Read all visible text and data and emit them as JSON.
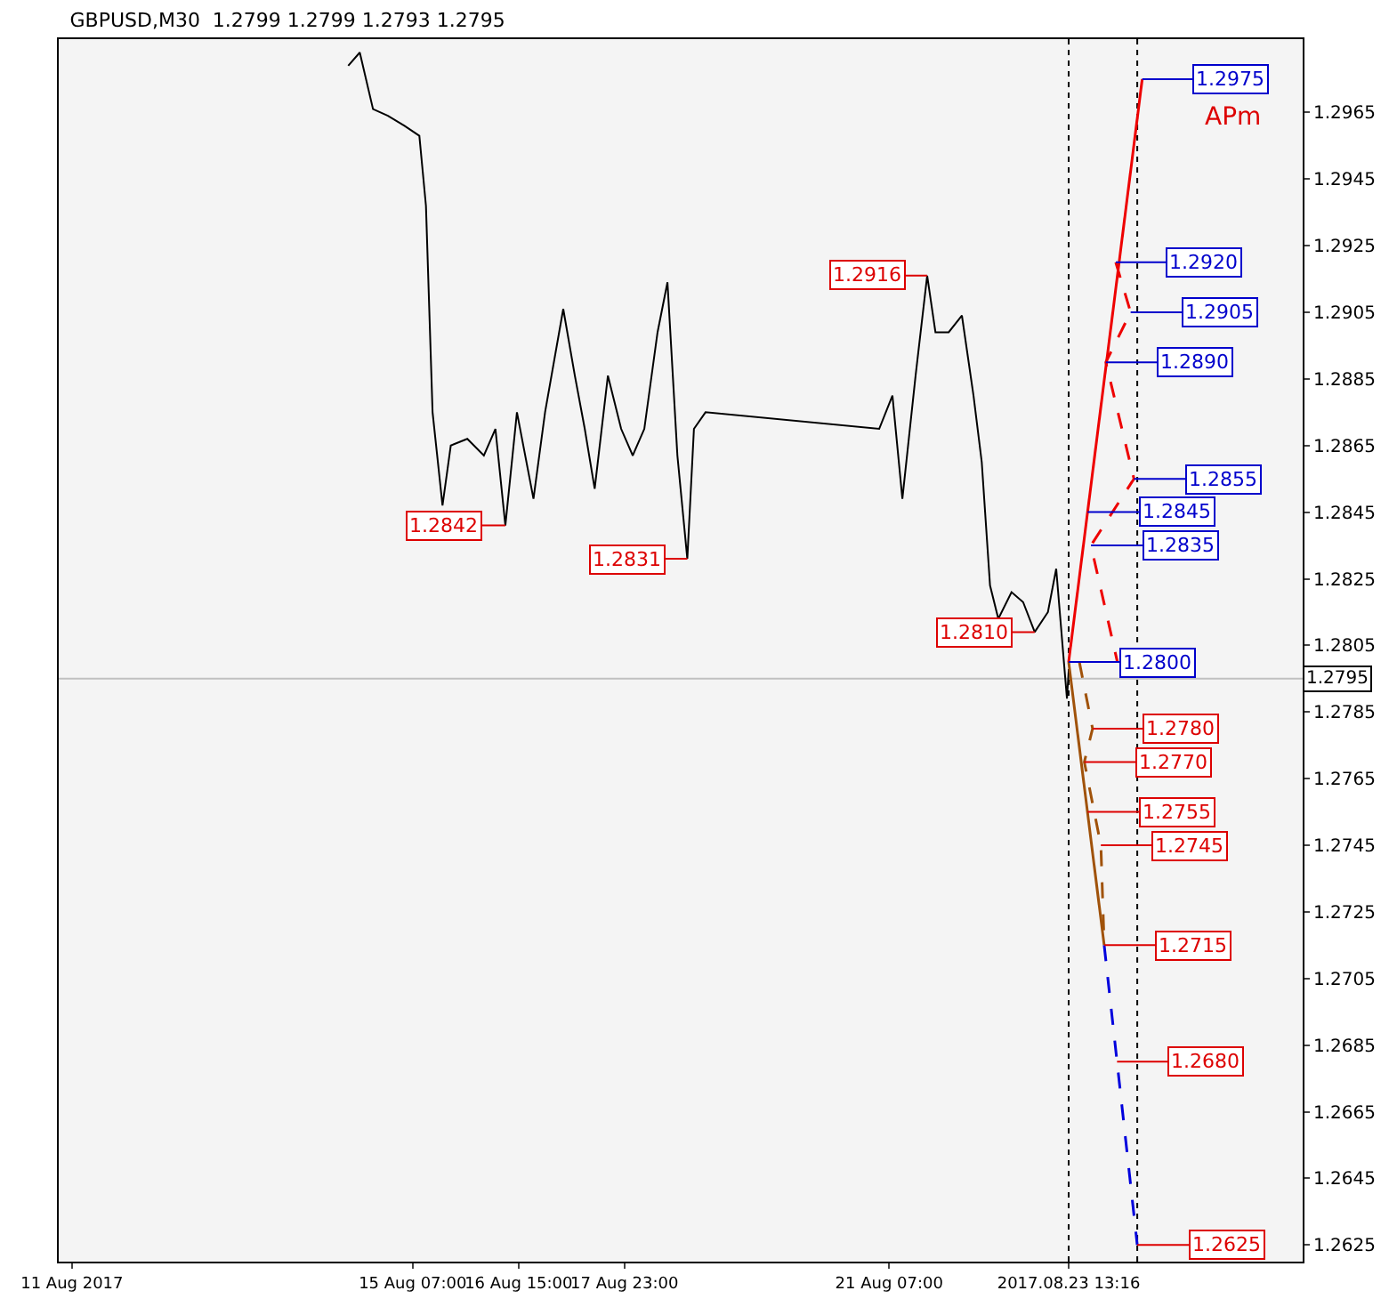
{
  "chart_data": {
    "type": "line",
    "title": "GBPUSD,M30  1.2799 1.2799 1.2793 1.2795",
    "x": [
      "2017-08-14T11:30",
      "2017-08-14T15:00",
      "2017-08-14T19:00",
      "2017-08-14T23:30",
      "2017-08-15T04:30",
      "2017-08-15T09:00",
      "2017-08-15T11:00",
      "2017-08-15T13:00",
      "2017-08-15T16:00",
      "2017-08-15T18:30",
      "2017-08-15T23:30",
      "2017-08-16T04:30",
      "2017-08-16T08:00",
      "2017-08-16T11:00",
      "2017-08-16T14:30",
      "2017-08-16T19:30",
      "2017-08-16T23:00",
      "2017-08-17T04:30",
      "2017-08-17T08:00",
      "2017-08-17T11:00",
      "2017-08-17T14:00",
      "2017-08-17T18:00",
      "2017-08-17T22:00",
      "2017-08-18T01:30",
      "2017-08-18T05:00",
      "2017-08-18T09:00",
      "2017-08-18T12:00",
      "2017-08-18T15:00",
      "2017-08-18T18:00",
      "2017-08-18T20:00",
      "2017-08-18T23:30",
      "2017-08-21T04:00",
      "2017-08-21T08:00",
      "2017-08-21T11:00",
      "2017-08-21T15:00",
      "2017-08-21T18:30",
      "2017-08-21T21:00",
      "2017-08-22T01:00",
      "2017-08-22T05:00",
      "2017-08-22T08:30",
      "2017-08-22T11:00",
      "2017-08-22T13:30",
      "2017-08-22T16:00",
      "2017-08-22T20:00",
      "2017-08-22T23:30",
      "2017-08-23T03:00",
      "2017-08-23T07:00",
      "2017-08-23T09:30",
      "2017-08-23T12:15",
      "2017-08-23T12:45",
      "2017-08-23T13:15"
    ],
    "series": [
      {
        "color": "#000000",
        "values": [
          1.2979,
          1.2983,
          1.2966,
          1.2964,
          1.2961,
          1.2958,
          1.2937,
          1.2875,
          1.2847,
          1.2865,
          1.2867,
          1.2862,
          1.287,
          1.2841,
          1.2875,
          1.2849,
          1.2875,
          1.2906,
          1.2886,
          1.287,
          1.2852,
          1.2886,
          1.287,
          1.2862,
          1.287,
          1.2899,
          1.2914,
          1.2862,
          1.2831,
          1.287,
          1.2875,
          1.287,
          1.288,
          1.2849,
          1.2886,
          1.2916,
          1.2899,
          1.2899,
          1.2904,
          1.288,
          1.286,
          1.2823,
          1.2813,
          1.2821,
          1.2818,
          1.2809,
          1.2815,
          1.2828,
          1.2795,
          1.2789,
          1.2797
        ]
      },
      {
        "color": "#ee0000",
        "x": [
          "2017-08-23T13:16",
          "2017-08-24T11:30"
        ],
        "values": [
          1.28,
          1.2975
        ]
      },
      {
        "color": "#ee0000",
        "line_style": "dashed",
        "x": [
          "2017-08-24T03:30",
          "2017-08-24T08:00",
          "2017-08-24T00:30",
          "2017-08-24T09:00",
          "2017-08-23T20:00",
          "2017-08-24T04:00"
        ],
        "values": [
          1.292,
          1.2905,
          1.289,
          1.2855,
          1.2835,
          1.28
        ]
      },
      {
        "color": "#a0520a",
        "x": [
          "2017-08-23T13:16",
          "2017-08-24T00:00"
        ],
        "values": [
          1.28,
          1.2715
        ]
      },
      {
        "color": "#a0520a",
        "line_style": "dashed",
        "x": [
          "2017-08-23T16:30",
          "2017-08-23T20:30",
          "2017-08-23T18:00",
          "2017-08-23T23:00",
          "2017-08-24T00:00"
        ],
        "values": [
          1.28,
          1.278,
          1.277,
          1.2745,
          1.2715
        ]
      },
      {
        "color": "#0000dd",
        "line_style": "dashed",
        "x": [
          "2017-08-24T00:00",
          "2017-08-24T10:00"
        ],
        "values": [
          1.2715,
          1.2625
        ]
      }
    ],
    "xlim": [
      "2017-08-10T20:00",
      "2017-08-26T12:00"
    ],
    "xticks": [
      {
        "value": "2017-08-11",
        "label": "11 Aug 2017"
      },
      {
        "value": "2017-08-15T07:00",
        "label": "15 Aug 07:00"
      },
      {
        "value": "2017-08-16T15:00",
        "label": "16 Aug 15:00"
      },
      {
        "value": "2017-08-17T23:00",
        "label": "17 Aug 23:00"
      },
      {
        "value": "2017-08-21T07:00",
        "label": "21 Aug 07:00"
      },
      {
        "value": "2017-08-23T13:16",
        "label": "2017.08.23 13:16"
      }
    ],
    "ylim": [
      1.262,
      1.2987
    ],
    "yticks": [
      1.2625,
      1.2645,
      1.2665,
      1.2685,
      1.2705,
      1.2725,
      1.2745,
      1.2765,
      1.2785,
      1.2805,
      1.2825,
      1.2845,
      1.2865,
      1.2885,
      1.2905,
      1.2925,
      1.2945,
      1.2965
    ],
    "grid": false,
    "ref_lines": [
      {
        "axis": "y",
        "value": 1.2795,
        "label": "1.2795",
        "color": "#c0c0c0"
      },
      {
        "axis": "x",
        "value": "2017-08-23T13:16",
        "color": "#000000",
        "line_style": "dotted"
      },
      {
        "axis": "x",
        "value": "2017-08-24T10:00",
        "color": "#000000",
        "line_style": "dotted"
      }
    ],
    "annotations": [
      {
        "text": "1.2975",
        "x": "2017-08-24T11:30",
        "y": 1.2975
      },
      {
        "text": "1.2920",
        "x": "2017-08-24T03:30",
        "y": 1.292
      },
      {
        "text": "1.2905",
        "x": "2017-08-24T08:00",
        "y": 1.2905
      },
      {
        "text": "1.2890",
        "x": "2017-08-24T00:30",
        "y": 1.289
      },
      {
        "text": "1.2855",
        "x": "2017-08-24T09:00",
        "y": 1.2855
      },
      {
        "text": "1.2845",
        "x": "2017-08-23T19:00",
        "y": 1.2845
      },
      {
        "text": "1.2835",
        "x": "2017-08-23T20:00",
        "y": 1.2835
      },
      {
        "text": "1.2800",
        "x": "2017-08-23T13:16",
        "y": 1.28
      },
      {
        "text": "1.2780",
        "x": "2017-08-23T20:30",
        "y": 1.278
      },
      {
        "text": "1.2770",
        "x": "2017-08-23T18:00",
        "y": 1.277
      },
      {
        "text": "1.2755",
        "x": "2017-08-23T19:00",
        "y": 1.2755
      },
      {
        "text": "1.2745",
        "x": "2017-08-23T23:00",
        "y": 1.2745
      },
      {
        "text": "1.2715",
        "x": "2017-08-24T00:00",
        "y": 1.2715
      },
      {
        "text": "1.2680",
        "x": "2017-08-24T03:53",
        "y": 1.268
      },
      {
        "text": "1.2625",
        "x": "2017-08-24T10:00",
        "y": 1.2625
      },
      {
        "text": "1.2916",
        "x": "2017-08-21T18:30",
        "y": 1.2916
      },
      {
        "text": "1.2842",
        "x": "2017-08-16T11:00",
        "y": 1.2841
      },
      {
        "text": "1.2831",
        "x": "2017-08-18T18:00",
        "y": 1.2831
      },
      {
        "text": "1.2810",
        "x": "2017-08-23T03:00",
        "y": 1.2809
      },
      "APm"
    ]
  }
}
